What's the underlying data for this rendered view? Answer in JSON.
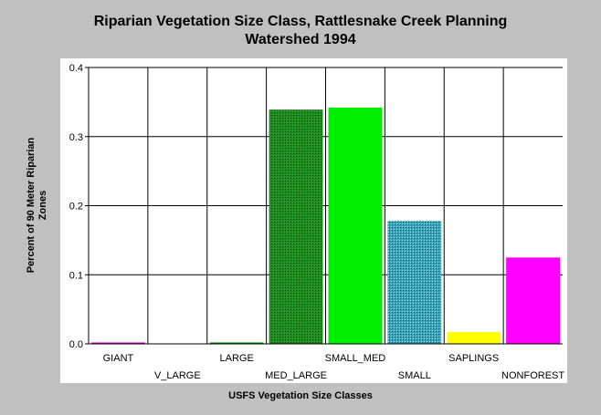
{
  "chart_data": {
    "type": "bar",
    "title": "Riparian Vegetation Size Class, Rattlesnake Creek Planning Watershed 1994",
    "title_lines": [
      "Riparian Vegetation Size Class, Rattlesnake Creek Planning",
      "Watershed 1994"
    ],
    "xlabel": "USFS Vegetation Size Classes",
    "ylabel_lines": [
      "Percent of 90 Meter Riparian",
      "Zones"
    ],
    "ylim": [
      0,
      0.4
    ],
    "yticks": [
      "0.0",
      "0.1",
      "0.2",
      "0.3",
      "0.4"
    ],
    "categories": [
      "GIANT",
      "V_LARGE",
      "LARGE",
      "MED_LARGE",
      "SMALL_MED",
      "SMALL",
      "SAPLINGS",
      "NONFOREST"
    ],
    "values": [
      0.002,
      0.0,
      0.002,
      0.339,
      0.342,
      0.178,
      0.017,
      0.125
    ],
    "colors": [
      "#cc00cc",
      "#00aa00",
      "#008800",
      "#009900",
      "#00ee00",
      "#3aa3b8",
      "#ffff00",
      "#ff00ff"
    ],
    "patterns": [
      "solid",
      "solid",
      "solid",
      "hatch-dark",
      "solid",
      "hatch-cyan",
      "solid",
      "solid"
    ],
    "grid": true,
    "legend": "none"
  }
}
